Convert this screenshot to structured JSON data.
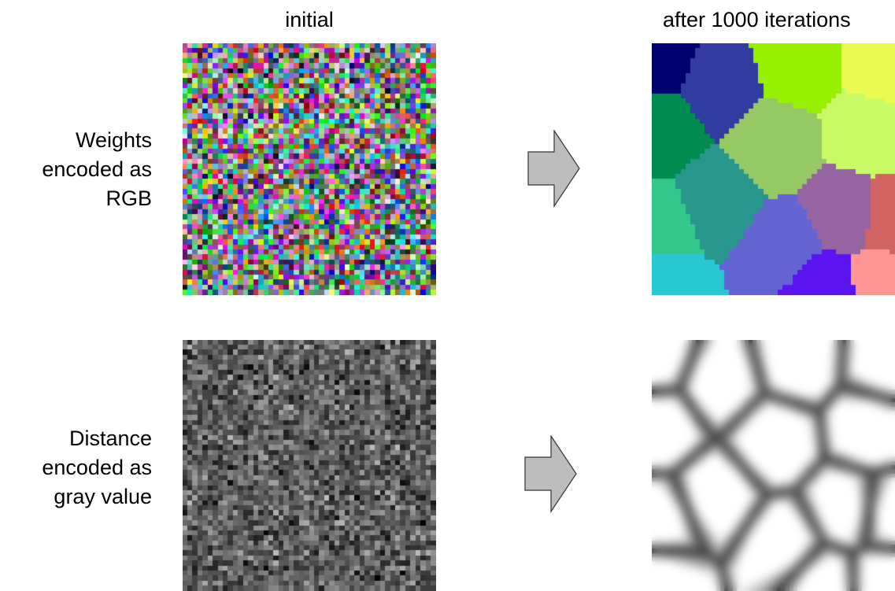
{
  "columns": {
    "initial": "initial",
    "after": "after 1000 iterations"
  },
  "rows": {
    "weights": [
      "Weights",
      "encoded as",
      "RGB"
    ],
    "distance": [
      "Distance",
      "encoded as",
      "gray value"
    ]
  },
  "colors": {
    "arrow_fill": "#bdbdbd",
    "arrow_stroke": "#333333"
  }
}
